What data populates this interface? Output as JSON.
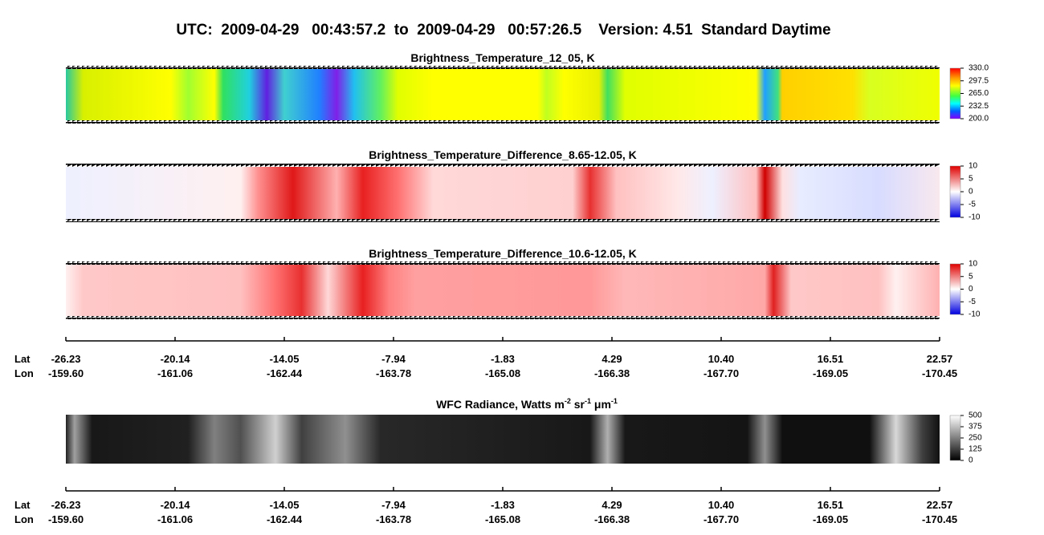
{
  "title": "UTC:  2009-04-29   00:43:57.2  to  2009-04-29   00:57:26.5    Version: 4.51  Standard Daytime",
  "panels": [
    {
      "title": "Brightness_Temperature_12_05, K",
      "colorbar": [
        "330.0",
        "297.5",
        "265.0",
        "232.5",
        "200.0"
      ]
    },
    {
      "title": "Brightness_Temperature_Difference_8.65-12.05, K",
      "colorbar": [
        "10",
        "5",
        "0",
        "-5",
        "-10"
      ]
    },
    {
      "title": "Brightness_Temperature_Difference_10.6-12.05, K",
      "colorbar": [
        "10",
        "5",
        "0",
        "-5",
        "-10"
      ]
    },
    {
      "title_parts": [
        "WFC Radiance, Watts m",
        "-2",
        " sr",
        "-1",
        " μm",
        "-1"
      ],
      "colorbar": [
        "500",
        "375",
        "250",
        "125",
        "0"
      ]
    }
  ],
  "axis": {
    "lat_label": "Lat",
    "lon_label": "Lon",
    "lat": [
      "-26.23",
      "-20.14",
      "-14.05",
      "-7.94",
      "-1.83",
      "4.29",
      "10.40",
      "16.51",
      "22.57"
    ],
    "lon": [
      "-159.60",
      "-161.06",
      "-162.44",
      "-163.78",
      "-165.08",
      "-166.38",
      "-167.70",
      "-169.05",
      "-170.45"
    ]
  }
}
